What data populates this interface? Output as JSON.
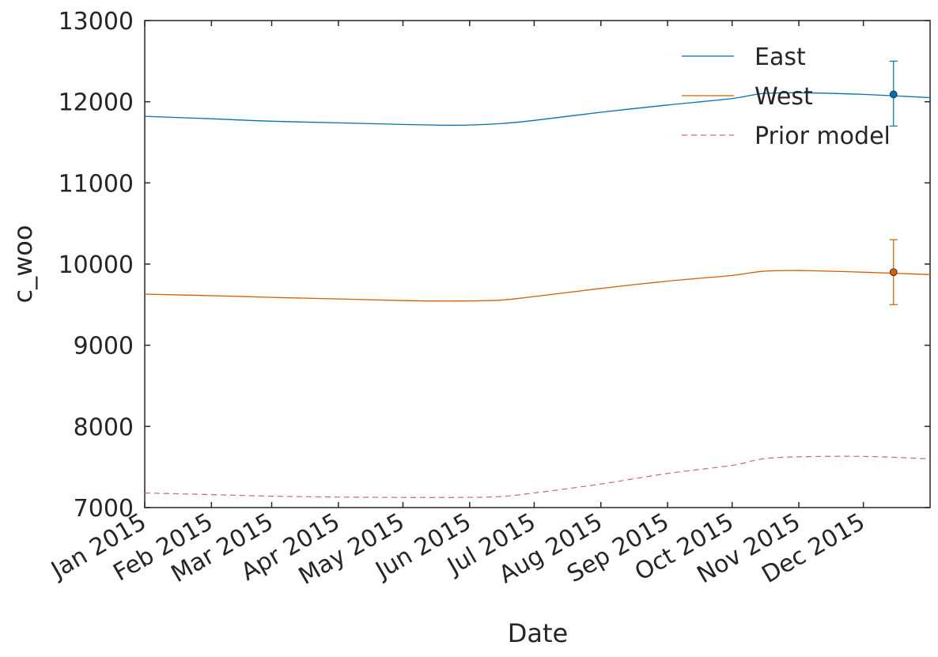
{
  "chart_data": {
    "type": "line",
    "xlabel": "Date",
    "ylabel": "c_woo",
    "ylim": [
      7000,
      13000
    ],
    "xlim": [
      "2015-01-01",
      "2016-01-01"
    ],
    "yticks": [
      7000,
      8000,
      9000,
      10000,
      11000,
      12000,
      13000
    ],
    "yticklabels": [
      "7000",
      "8000",
      "9000",
      "10000",
      "11000",
      "12000",
      "13000"
    ],
    "xticks": [
      "2015-01-01",
      "2015-02-01",
      "2015-03-01",
      "2015-04-01",
      "2015-05-01",
      "2015-06-01",
      "2015-07-01",
      "2015-08-01",
      "2015-09-01",
      "2015-10-01",
      "2015-11-01",
      "2015-12-01"
    ],
    "xticklabels": [
      "Jan 2015",
      "Feb 2015",
      "Mar 2015",
      "Apr 2015",
      "May 2015",
      "Jun 2015",
      "Jul 2015",
      "Aug 2015",
      "Sep 2015",
      "Oct 2015",
      "Nov 2015",
      "Dec 2015"
    ],
    "x": [
      "2015-01-01",
      "2015-02-01",
      "2015-03-01",
      "2015-04-01",
      "2015-05-01",
      "2015-05-26",
      "2015-06-15",
      "2015-07-01",
      "2015-08-01",
      "2015-09-01",
      "2015-10-01",
      "2015-10-15",
      "2015-11-01",
      "2015-12-01",
      "2016-01-01"
    ],
    "series": [
      {
        "name": "East",
        "color": "#0072b2",
        "style": "solid",
        "values": [
          11820,
          11790,
          11760,
          11740,
          11720,
          11710,
          11730,
          11770,
          11870,
          11960,
          12040,
          12100,
          12110,
          12090,
          12050
        ],
        "point": {
          "x": "2015-12-15",
          "y": 12090,
          "error_low": 11700,
          "error_high": 12500
        }
      },
      {
        "name": "West",
        "color": "#d55e00",
        "style": "solid",
        "values": [
          9630,
          9610,
          9590,
          9570,
          9550,
          9545,
          9555,
          9600,
          9700,
          9790,
          9860,
          9910,
          9920,
          9900,
          9870
        ],
        "point": {
          "x": "2015-12-15",
          "y": 9900,
          "error_low": 9500,
          "error_high": 10300
        }
      },
      {
        "name": "Prior model",
        "color": "#cc6677",
        "style": "dashed",
        "values": [
          7180,
          7160,
          7140,
          7130,
          7125,
          7125,
          7135,
          7180,
          7290,
          7420,
          7520,
          7600,
          7625,
          7630,
          7600
        ]
      }
    ],
    "legend": "top-right",
    "grid": false
  }
}
